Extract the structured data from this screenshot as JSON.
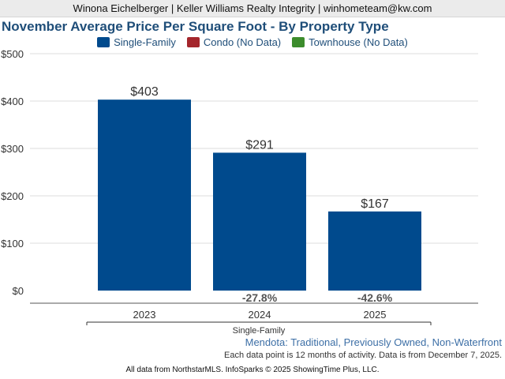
{
  "header": {
    "text": "Winona Eichelberger | Keller Williams Realty Integrity | winhometeam@kw.com"
  },
  "legend": [
    {
      "label": "Single-Family",
      "color": "#004a8d"
    },
    {
      "label": "Condo (No Data)",
      "color": "#a4262c"
    },
    {
      "label": "Townhouse (No Data)",
      "color": "#3c8c2c"
    }
  ],
  "chart_data": {
    "type": "bar",
    "title": "November Average Price Per Square Foot - By Property Type",
    "categories": [
      "2023",
      "2024",
      "2025"
    ],
    "series": [
      {
        "name": "Single-Family",
        "values": [
          403,
          291,
          167
        ],
        "color": "#004a8d"
      }
    ],
    "value_labels": [
      "$403",
      "$291",
      "$167"
    ],
    "change_labels": [
      "",
      "-27.8%",
      "-42.6%"
    ],
    "group_label": "Single-Family",
    "ylim": [
      0,
      500
    ],
    "y_ticks": [
      0,
      100,
      200,
      300,
      400,
      500
    ],
    "y_tick_labels": [
      "$0",
      "$100",
      "$200",
      "$300",
      "$400",
      "$500"
    ],
    "grid": true,
    "legend_position": "top-center"
  },
  "footer": {
    "region": "Mendota: Traditional, Previously Owned, Non-Waterfront",
    "activity": "Each data point is 12 months of activity. Data is from December 7, 2025.",
    "source": "All data from NorthstarMLS. InfoSparks © 2025 ShowingTime Plus, LLC."
  }
}
